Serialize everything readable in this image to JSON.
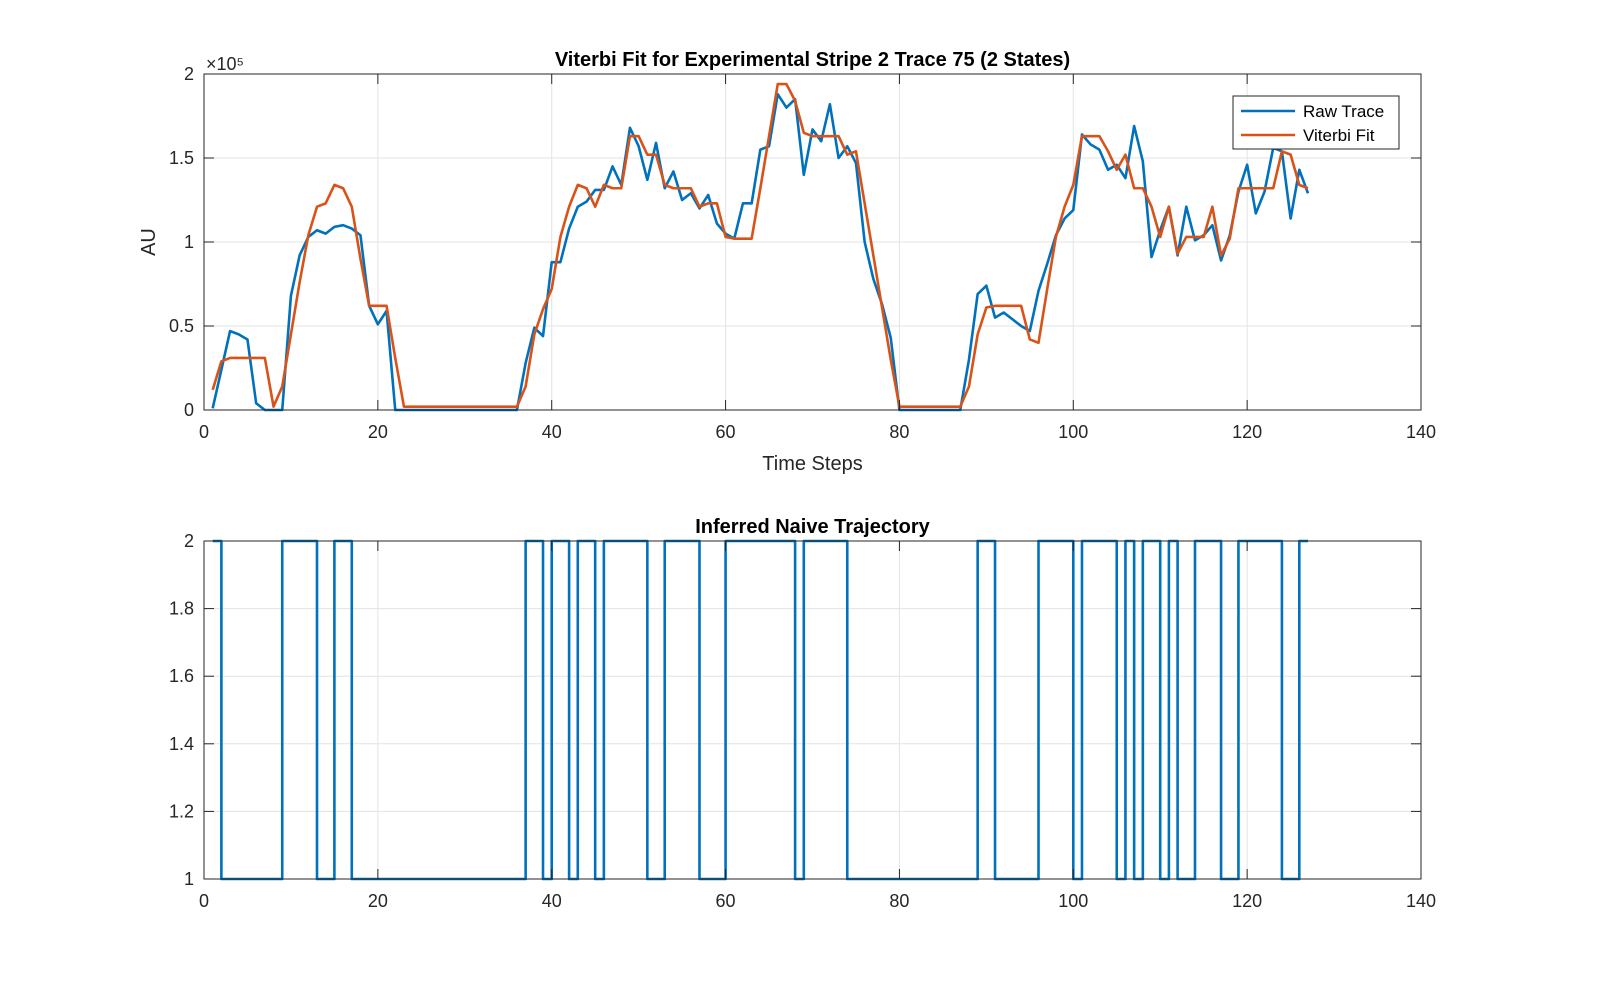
{
  "chart_data": [
    {
      "type": "line",
      "title": "Viterbi Fit for Experimental Stripe 2 Trace 75 (2 States)",
      "xlabel": "Time Steps",
      "ylabel": "AU",
      "xlim": [
        0,
        140
      ],
      "ylim": [
        0,
        2
      ],
      "y_exponent_label": "×10⁵",
      "x_ticks": [
        "0",
        "20",
        "40",
        "60",
        "80",
        "100",
        "120",
        "140"
      ],
      "y_ticks": [
        "0",
        "0.5",
        "1",
        "1.5",
        "2"
      ],
      "grid": true,
      "legend": "top-right",
      "x": [
        1,
        2,
        3,
        4,
        5,
        6,
        7,
        8,
        9,
        10,
        11,
        12,
        13,
        14,
        15,
        16,
        17,
        18,
        19,
        20,
        21,
        22,
        23,
        24,
        25,
        26,
        27,
        28,
        29,
        30,
        31,
        32,
        33,
        34,
        35,
        36,
        37,
        38,
        39,
        40,
        41,
        42,
        43,
        44,
        45,
        46,
        47,
        48,
        49,
        50,
        51,
        52,
        53,
        54,
        55,
        56,
        57,
        58,
        59,
        60,
        61,
        62,
        63,
        64,
        65,
        66,
        67,
        68,
        69,
        70,
        71,
        72,
        73,
        74,
        75,
        76,
        77,
        78,
        79,
        80,
        81,
        82,
        83,
        84,
        85,
        86,
        87,
        88,
        89,
        90,
        91,
        92,
        93,
        94,
        95,
        96,
        97,
        98,
        99,
        100,
        101,
        102,
        103,
        104,
        105,
        106,
        107,
        108,
        109,
        110,
        111,
        112,
        113,
        114,
        115,
        116,
        117,
        118,
        119,
        120,
        121,
        122,
        123,
        124,
        125,
        126,
        127
      ],
      "series": [
        {
          "name": "Raw Trace",
          "color": "#0072BD",
          "values": [
            0.01,
            0.24,
            0.47,
            0.45,
            0.42,
            0.04,
            0.0,
            0.0,
            0.0,
            0.68,
            0.92,
            1.03,
            1.07,
            1.05,
            1.09,
            1.1,
            1.08,
            1.04,
            0.62,
            0.51,
            0.59,
            0.0,
            0.0,
            0.0,
            0.0,
            0.0,
            0.0,
            0.0,
            0.0,
            0.0,
            0.0,
            0.0,
            0.0,
            0.0,
            0.0,
            0.0,
            0.28,
            0.49,
            0.44,
            0.88,
            0.88,
            1.08,
            1.21,
            1.24,
            1.31,
            1.31,
            1.45,
            1.34,
            1.68,
            1.57,
            1.37,
            1.59,
            1.32,
            1.42,
            1.25,
            1.29,
            1.2,
            1.28,
            1.11,
            1.05,
            1.02,
            1.23,
            1.23,
            1.55,
            1.57,
            1.88,
            1.8,
            1.85,
            1.4,
            1.67,
            1.6,
            1.82,
            1.5,
            1.57,
            1.47,
            1.0,
            0.78,
            0.63,
            0.43,
            0.0,
            0.0,
            0.0,
            0.0,
            0.0,
            0.0,
            0.0,
            0.0,
            0.3,
            0.69,
            0.74,
            0.55,
            0.58,
            0.54,
            0.5,
            0.47,
            0.71,
            0.87,
            1.04,
            1.14,
            1.19,
            1.64,
            1.58,
            1.55,
            1.43,
            1.46,
            1.38,
            1.69,
            1.48,
            0.91,
            1.07,
            1.21,
            0.92,
            1.21,
            1.01,
            1.04,
            1.1,
            0.89,
            1.04,
            1.3,
            1.46,
            1.17,
            1.3,
            1.56,
            1.54,
            1.14,
            1.43,
            1.29
          ]
        },
        {
          "name": "Viterbi Fit",
          "color": "#D95319",
          "values": [
            0.12,
            0.29,
            0.31,
            0.31,
            0.31,
            0.31,
            0.31,
            0.02,
            0.14,
            0.45,
            0.76,
            1.04,
            1.21,
            1.23,
            1.34,
            1.32,
            1.21,
            0.9,
            0.62,
            0.62,
            0.62,
            0.31,
            0.02,
            0.02,
            0.02,
            0.02,
            0.02,
            0.02,
            0.02,
            0.02,
            0.02,
            0.02,
            0.02,
            0.02,
            0.02,
            0.02,
            0.14,
            0.45,
            0.6,
            0.72,
            1.03,
            1.21,
            1.34,
            1.32,
            1.21,
            1.34,
            1.32,
            1.32,
            1.63,
            1.63,
            1.52,
            1.52,
            1.34,
            1.32,
            1.32,
            1.32,
            1.21,
            1.23,
            1.23,
            1.03,
            1.02,
            1.02,
            1.02,
            1.32,
            1.63,
            1.94,
            1.94,
            1.84,
            1.65,
            1.63,
            1.63,
            1.63,
            1.63,
            1.52,
            1.54,
            1.23,
            0.92,
            0.61,
            0.3,
            0.02,
            0.02,
            0.02,
            0.02,
            0.02,
            0.02,
            0.02,
            0.02,
            0.14,
            0.45,
            0.61,
            0.62,
            0.62,
            0.62,
            0.62,
            0.42,
            0.4,
            0.72,
            1.03,
            1.21,
            1.34,
            1.63,
            1.63,
            1.63,
            1.54,
            1.43,
            1.52,
            1.32,
            1.32,
            1.21,
            1.03,
            1.21,
            0.93,
            1.03,
            1.03,
            1.03,
            1.21,
            0.92,
            1.02,
            1.32,
            1.32,
            1.32,
            1.32,
            1.32,
            1.54,
            1.52,
            1.34,
            1.32
          ]
        }
      ]
    },
    {
      "type": "line",
      "title": "Inferred Naive Trajectory",
      "xlabel": "",
      "ylabel": "",
      "xlim": [
        0,
        140
      ],
      "ylim": [
        1,
        2
      ],
      "x_ticks": [
        "0",
        "20",
        "40",
        "60",
        "80",
        "100",
        "120",
        "140"
      ],
      "y_ticks": [
        "1",
        "1.2",
        "1.4",
        "1.6",
        "1.8",
        "2"
      ],
      "grid": true,
      "step": true,
      "x": [
        1,
        2,
        3,
        4,
        5,
        6,
        7,
        8,
        9,
        10,
        11,
        12,
        13,
        14,
        15,
        16,
        17,
        18,
        19,
        20,
        21,
        22,
        23,
        24,
        25,
        26,
        27,
        28,
        29,
        30,
        31,
        32,
        33,
        34,
        35,
        36,
        37,
        38,
        39,
        40,
        41,
        42,
        43,
        44,
        45,
        46,
        47,
        48,
        49,
        50,
        51,
        52,
        53,
        54,
        55,
        56,
        57,
        58,
        59,
        60,
        61,
        62,
        63,
        64,
        65,
        66,
        67,
        68,
        69,
        70,
        71,
        72,
        73,
        74,
        75,
        76,
        77,
        78,
        79,
        80,
        81,
        82,
        83,
        84,
        85,
        86,
        87,
        88,
        89,
        90,
        91,
        92,
        93,
        94,
        95,
        96,
        97,
        98,
        99,
        100,
        101,
        102,
        103,
        104,
        105,
        106,
        107,
        108,
        109,
        110,
        111,
        112,
        113,
        114,
        115,
        116,
        117,
        118,
        119,
        120,
        121,
        122,
        123,
        124,
        125,
        126,
        127
      ],
      "series": [
        {
          "name": "",
          "color": "#0072BD",
          "values": [
            2,
            1,
            1,
            1,
            1,
            1,
            1,
            1,
            2,
            2,
            2,
            2,
            1,
            1,
            2,
            2,
            1,
            1,
            1,
            1,
            1,
            1,
            1,
            1,
            1,
            1,
            1,
            1,
            1,
            1,
            1,
            1,
            1,
            1,
            1,
            1,
            2,
            2,
            1,
            2,
            2,
            1,
            2,
            2,
            1,
            2,
            2,
            2,
            2,
            2,
            1,
            1,
            2,
            2,
            2,
            2,
            1,
            1,
            1,
            2,
            2,
            2,
            2,
            2,
            2,
            2,
            2,
            1,
            2,
            2,
            2,
            2,
            2,
            1,
            1,
            1,
            1,
            1,
            1,
            1,
            1,
            1,
            1,
            1,
            1,
            1,
            1,
            1,
            2,
            2,
            1,
            1,
            1,
            1,
            1,
            2,
            2,
            2,
            2,
            1,
            2,
            2,
            2,
            2,
            1,
            2,
            1,
            2,
            2,
            1,
            2,
            1,
            1,
            2,
            2,
            2,
            1,
            1,
            2,
            2,
            2,
            2,
            2,
            1,
            1,
            2,
            2
          ]
        }
      ]
    }
  ]
}
